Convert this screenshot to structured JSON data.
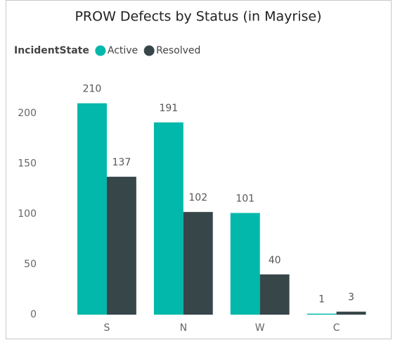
{
  "chart_data": {
    "type": "bar",
    "title": "PROW Defects by Status (in Mayrise)",
    "legend_title": "IncidentState",
    "categories": [
      "S",
      "N",
      "W",
      "C"
    ],
    "series": [
      {
        "name": "Active",
        "color": "#01b8aa",
        "values": [
          210,
          191,
          101,
          1
        ]
      },
      {
        "name": "Resolved",
        "color": "#374649",
        "values": [
          137,
          102,
          40,
          3
        ]
      }
    ],
    "ylim": [
      0,
      220
    ],
    "yticks": [
      0,
      50,
      100,
      150,
      200
    ],
    "grid": false
  }
}
